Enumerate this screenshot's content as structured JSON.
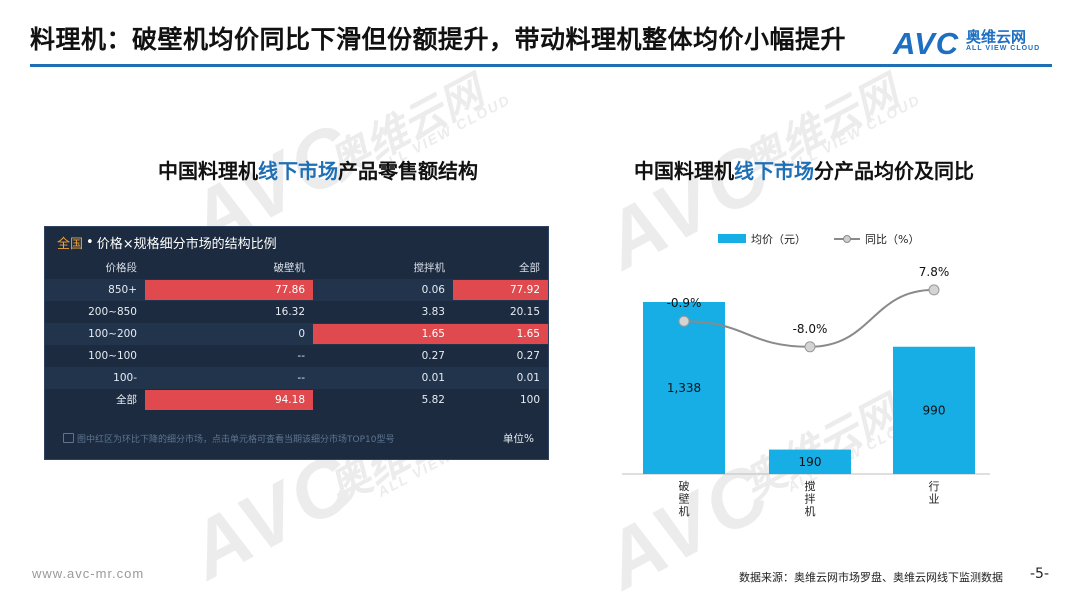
{
  "slide": {
    "title": "料理机：破壁机均价同比下滑但份额提升，带动料理机整体均价小幅提升",
    "logo": {
      "mark": "AVC",
      "cn": "奥维云网",
      "en": "ALL VIEW CLOUD"
    },
    "watermark": {
      "mark": "AVC",
      "cn": "奥维云网",
      "en": "ALL VIEW CLOUD"
    },
    "footer": {
      "url": "www.avc-mr.com",
      "source": "数据来源：奥维云网市场罗盘、奥维云网线下监测数据",
      "page": "-5-"
    }
  },
  "left_panel": {
    "title_prefix": "中国料理机",
    "title_highlight": "线下市场",
    "title_suffix": "产品零售额结构"
  },
  "right_panel": {
    "title_prefix": "中国料理机",
    "title_highlight": "线下市场",
    "title_suffix": "分产品均价及同比"
  },
  "table": {
    "scope": "全国",
    "header_rest": "价格×规格细分市场的结构比例",
    "columns": [
      "价格段",
      "破壁机",
      "搅拌机",
      "全部"
    ],
    "rows": [
      {
        "segment": "850+",
        "blender": "77.86",
        "mixer": "0.06",
        "total": "77.92",
        "hl": [
          true,
          false,
          true
        ]
      },
      {
        "segment": "200~850",
        "blender": "16.32",
        "mixer": "3.83",
        "total": "20.15",
        "hl": [
          false,
          false,
          false
        ]
      },
      {
        "segment": "100~200",
        "blender": "0",
        "mixer": "1.65",
        "total": "1.65",
        "hl": [
          false,
          true,
          true
        ]
      },
      {
        "segment": "100~100",
        "blender": "--",
        "mixer": "0.27",
        "total": "0.27",
        "hl": [
          false,
          false,
          false
        ]
      },
      {
        "segment": "100-",
        "blender": "--",
        "mixer": "0.01",
        "total": "0.01",
        "hl": [
          false,
          false,
          false
        ]
      },
      {
        "segment": "全部",
        "blender": "94.18",
        "mixer": "5.82",
        "total": "100",
        "hl": [
          true,
          false,
          false
        ]
      }
    ],
    "note": "图中红区为环比下降的细分市场，点击单元格可查看当期该细分市场TOP10型号",
    "unit": "单位%",
    "colors": {
      "bg": "#1c2b3f",
      "highlight": "#e0494d",
      "scope": "#f0a33a"
    }
  },
  "chart_data": {
    "type": "bar",
    "categories": [
      "破壁机",
      "搅拌机",
      "行业"
    ],
    "series": [
      {
        "name": "均价（元）",
        "type": "bar",
        "values": [
          1338,
          190,
          990
        ],
        "labels": [
          "1,338",
          "190",
          "990"
        ],
        "color": "#17aee6"
      },
      {
        "name": "同比（%）",
        "type": "line",
        "values": [
          -0.9,
          -8.0,
          7.8
        ],
        "labels": [
          "-0.9%",
          "-8.0%",
          "7.8%"
        ],
        "color": "#8a8a8a"
      }
    ],
    "legend": "top-center",
    "grid": false
  }
}
